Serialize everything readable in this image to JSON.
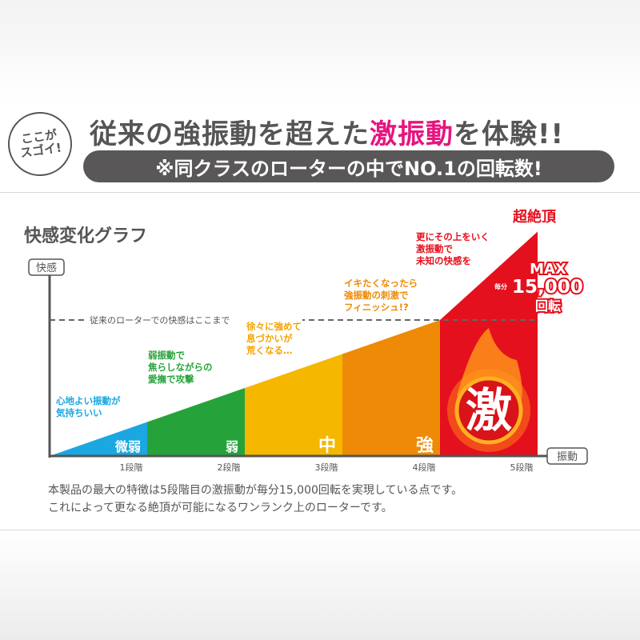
{
  "header": {
    "badge": [
      "ここが",
      "スゴイ!"
    ],
    "headline_before": "従来の強振動を超えた",
    "headline_highlight": "激振動",
    "headline_after": "を体験!!",
    "subheadline": "※同クラスのローターの中でNO.1の回転数!",
    "highlight_color": "#e6157f"
  },
  "chart_data": {
    "type": "area",
    "title": "快感変化グラフ",
    "ylabel": "快感",
    "xlabel": "振動",
    "categories": [
      "1段階",
      "2段階",
      "3段階",
      "4段階",
      "5段階"
    ],
    "stage_labels": [
      "微弱",
      "弱",
      "中",
      "強",
      "激"
    ],
    "relative_level_at_stage_end": [
      25,
      50,
      75,
      100,
      165
    ],
    "threshold": 100,
    "threshold_label": "従来のローターでの快感はここまで",
    "colors": [
      "#1ba7e1",
      "#25a33a",
      "#f5b700",
      "#ee8a05",
      "#e5101d"
    ],
    "annotations": [
      {
        "text": [
          "心地よい振動が",
          "気持ちいい"
        ],
        "color": "#1ba7e1"
      },
      {
        "text": [
          "弱振動で",
          "焦らしながらの",
          "愛撫で攻撃"
        ],
        "color": "#25a33a"
      },
      {
        "text": [
          "徐々に強めて",
          "息づかいが",
          "荒くなる…"
        ],
        "color": "#f5a300"
      },
      {
        "text": [
          "イキたくなったら",
          "強振動の刺激で",
          "フィニッシュ!?"
        ],
        "color": "#ee8a05"
      },
      {
        "text": [
          "更にその上をいく",
          "激振動で",
          "未知の快感を"
        ],
        "color": "#e5101d"
      }
    ],
    "peak_label": "超絶頂",
    "max_label": "MAX",
    "max_prefix": "毎分",
    "max_value": "15,000",
    "max_unit": "回転"
  },
  "caption": [
    "本製品の最大の特徴は5段階目の激振動が毎分15,000回転を実現している点です。",
    "これによって更なる絶頂が可能になるワンランク上のローターです。"
  ]
}
